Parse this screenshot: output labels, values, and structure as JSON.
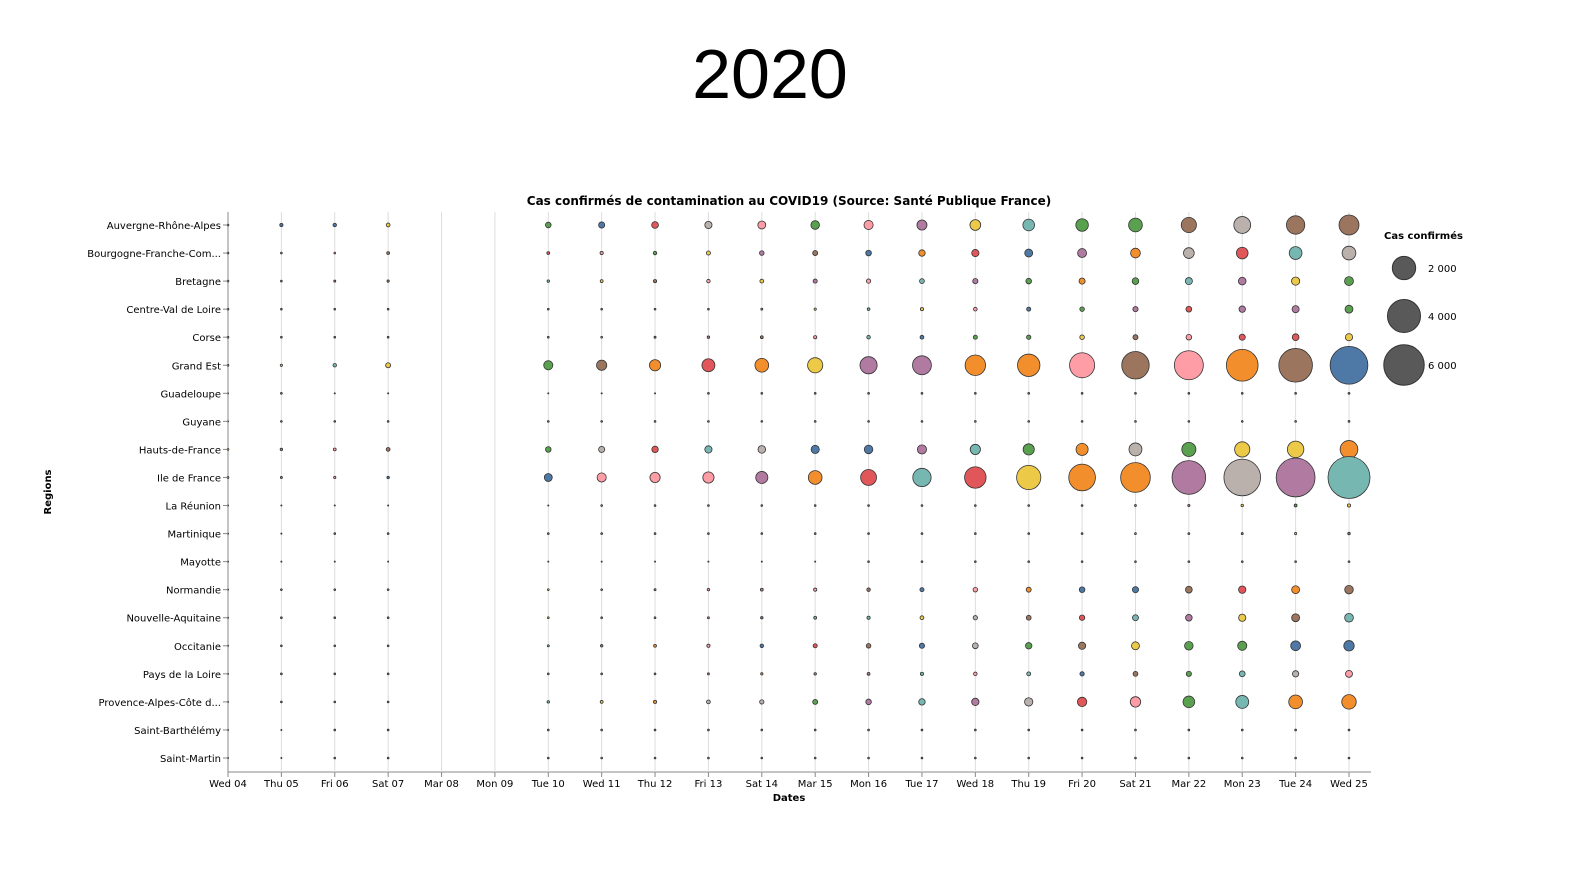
{
  "page_title": "2020",
  "chart_data": {
    "type": "scatter",
    "title": "Cas confirmés de contamination au COVID19 (Source: Santé Publique France)",
    "xlabel": "Dates",
    "ylabel": "Regions",
    "x_ticks": [
      "Wed 04",
      "Thu 05",
      "Fri 06",
      "Sat 07",
      "Mar 08",
      "Mon 09",
      "Tue 10",
      "Wed 11",
      "Thu 12",
      "Fri 13",
      "Sat 14",
      "Mar 15",
      "Mon 16",
      "Tue 17",
      "Wed 18",
      "Thu 19",
      "Fri 20",
      "Sat 21",
      "Mar 22",
      "Mon 23",
      "Tue 24",
      "Wed 25"
    ],
    "regions": [
      "Auvergne-Rhône-Alpes",
      "Bourgogne-Franche-Com...",
      "Bretagne",
      "Centre-Val de Loire",
      "Corse",
      "Grand Est",
      "Guadeloupe",
      "Guyane",
      "Hauts-de-France",
      "Ile de France",
      "La Réunion",
      "Martinique",
      "Mayotte",
      "Normandie",
      "Nouvelle-Aquitaine",
      "Occitanie",
      "Pays de la Loire",
      "Provence-Alpes-Côte d...",
      "Saint-Barthélémy",
      "Saint-Martin"
    ],
    "legend": {
      "title": "Cas confirmés",
      "position": "right",
      "entries": [
        2000,
        4000,
        6000
      ],
      "labels": [
        "2 000",
        "4 000",
        "6 000"
      ]
    },
    "grid": true,
    "palette": [
      "#4e79a7",
      "#f28e2b",
      "#e15759",
      "#76b7b2",
      "#59a14f",
      "#edc948",
      "#b07aa1",
      "#ff9da7",
      "#9c755f",
      "#bab0ac"
    ],
    "values": [
      [
        5,
        50,
        60,
        70,
        null,
        null,
        150,
        180,
        220,
        250,
        300,
        350,
        400,
        480,
        550,
        650,
        750,
        900,
        1100,
        1350,
        1600,
        1900
      ],
      [
        3,
        10,
        15,
        40,
        null,
        null,
        40,
        50,
        60,
        80,
        100,
        120,
        150,
        200,
        250,
        300,
        380,
        450,
        550,
        650,
        780,
        900
      ],
      [
        3,
        15,
        20,
        25,
        null,
        null,
        30,
        40,
        50,
        60,
        70,
        80,
        90,
        110,
        130,
        150,
        180,
        210,
        240,
        280,
        320,
        380
      ],
      [
        1,
        2,
        3,
        4,
        null,
        null,
        6,
        8,
        10,
        15,
        20,
        25,
        35,
        50,
        65,
        80,
        100,
        130,
        160,
        200,
        240,
        300
      ],
      [
        1,
        2,
        2,
        2,
        null,
        null,
        10,
        15,
        20,
        30,
        40,
        50,
        60,
        70,
        80,
        90,
        100,
        120,
        150,
        180,
        220,
        250
      ],
      [
        3,
        25,
        60,
        120,
        null,
        null,
        400,
        500,
        600,
        800,
        900,
        1100,
        1400,
        1700,
        2000,
        2400,
        3000,
        3600,
        4000,
        4800,
        5400,
        6800
      ],
      [
        0,
        1,
        0,
        0,
        null,
        null,
        0,
        0,
        0,
        1,
        1,
        2,
        3,
        4,
        5,
        6,
        7,
        8,
        10,
        12,
        14,
        18
      ],
      [
        0,
        2,
        2,
        1,
        null,
        null,
        2,
        3,
        4,
        4,
        5,
        5,
        6,
        6,
        7,
        7,
        8,
        9,
        10,
        12,
        14,
        16
      ],
      [
        5,
        30,
        40,
        70,
        null,
        null,
        150,
        180,
        200,
        250,
        280,
        320,
        350,
        400,
        500,
        600,
        700,
        800,
        950,
        1100,
        1300,
        1500
      ],
      [
        3,
        20,
        25,
        30,
        null,
        null,
        300,
        400,
        500,
        600,
        700,
        900,
        1200,
        1600,
        2200,
        2800,
        3400,
        4200,
        5400,
        6400,
        7200,
        8400
      ],
      [
        0,
        0,
        0,
        0,
        null,
        null,
        0,
        1,
        1,
        1,
        2,
        3,
        4,
        6,
        8,
        10,
        14,
        18,
        24,
        30,
        40,
        50
      ],
      [
        0,
        0,
        2,
        1,
        null,
        null,
        2,
        3,
        4,
        5,
        6,
        7,
        8,
        9,
        10,
        12,
        14,
        16,
        18,
        20,
        24,
        30
      ],
      [
        0,
        0,
        0,
        0,
        null,
        null,
        0,
        0,
        0,
        0,
        0,
        0,
        1,
        2,
        3,
        4,
        5,
        6,
        8,
        10,
        12,
        14
      ],
      [
        0,
        3,
        4,
        6,
        null,
        null,
        10,
        15,
        20,
        30,
        40,
        50,
        60,
        80,
        100,
        120,
        150,
        180,
        220,
        260,
        300,
        350
      ],
      [
        0,
        2,
        3,
        5,
        null,
        null,
        8,
        12,
        15,
        20,
        30,
        40,
        50,
        70,
        90,
        110,
        140,
        170,
        210,
        250,
        300,
        360
      ],
      [
        0,
        3,
        5,
        10,
        null,
        null,
        20,
        30,
        40,
        50,
        60,
        80,
        100,
        130,
        160,
        200,
        250,
        300,
        350,
        400,
        460,
        520
      ],
      [
        0,
        2,
        4,
        6,
        null,
        null,
        10,
        12,
        15,
        20,
        25,
        30,
        40,
        50,
        60,
        75,
        90,
        110,
        130,
        160,
        190,
        230
      ],
      [
        0,
        3,
        6,
        10,
        null,
        null,
        30,
        40,
        50,
        70,
        90,
        120,
        150,
        200,
        260,
        330,
        420,
        520,
        650,
        800,
        900,
        1000
      ],
      [
        0,
        0,
        1,
        1,
        null,
        null,
        1,
        1,
        1,
        1,
        2,
        2,
        2,
        3,
        3,
        3,
        4,
        4,
        5,
        5,
        6,
        6
      ],
      [
        0,
        0,
        2,
        1,
        null,
        null,
        2,
        2,
        3,
        3,
        3,
        4,
        4,
        5,
        5,
        6,
        6,
        7,
        8,
        9,
        10,
        11
      ]
    ],
    "colors": [
      [
        "teal",
        "blue",
        "blue",
        "yellow",
        null,
        null,
        "green",
        "blue",
        "red",
        "gray",
        "pink",
        "green",
        "pink",
        "purple",
        "yellow",
        "teal",
        "green",
        "green",
        "brown",
        "gray",
        "brown",
        "brown"
      ],
      [
        "brown",
        "purple",
        "pink",
        "brown",
        null,
        null,
        "red",
        "pink",
        "green",
        "yellow",
        "purple",
        "brown",
        "blue",
        "orange",
        "red",
        "blue",
        "purple",
        "orange",
        "gray",
        "red",
        "teal",
        "gray"
      ],
      [
        "teal",
        "brown",
        "brown",
        "brown",
        null,
        null,
        "teal",
        "yellow",
        "brown",
        "pink",
        "yellow",
        "purple",
        "pink",
        "teal",
        "purple",
        "green",
        "orange",
        "green",
        "teal",
        "purple",
        "yellow",
        "green"
      ],
      [
        "brown",
        "brown",
        "brown",
        "brown",
        null,
        null,
        "brown",
        "brown",
        "brown",
        "brown",
        "brown",
        "yellow",
        "teal",
        "yellow",
        "pink",
        "blue",
        "green",
        "purple",
        "red",
        "purple",
        "purple",
        "green"
      ],
      [
        "brown",
        "brown",
        "brown",
        "brown",
        null,
        null,
        "brown",
        "orange",
        "blue",
        "purple",
        "brown",
        "pink",
        "teal",
        "blue",
        "green",
        "green",
        "yellow",
        "brown",
        "pink",
        "red",
        "red",
        "yellow"
      ],
      [
        "blue",
        "yellow",
        "teal",
        "yellow",
        null,
        null,
        "green",
        "brown",
        "orange",
        "red",
        "orange",
        "yellow",
        "purple",
        "purple",
        "orange",
        "orange",
        "pink",
        "brown",
        "pink",
        "orange",
        "brown",
        "blue"
      ],
      [
        "brown",
        "brown",
        "brown",
        "brown",
        null,
        null,
        "brown",
        "brown",
        "brown",
        "brown",
        "brown",
        "brown",
        "brown",
        "brown",
        "brown",
        "brown",
        "brown",
        "brown",
        "brown",
        "brown",
        "brown",
        "brown"
      ],
      [
        "brown",
        "brown",
        "brown",
        "brown",
        null,
        null,
        "brown",
        "brown",
        "brown",
        "brown",
        "brown",
        "brown",
        "brown",
        "brown",
        "brown",
        "brown",
        "brown",
        "brown",
        "brown",
        "brown",
        "brown",
        "brown"
      ],
      [
        "orange",
        "purple",
        "pink",
        "brown",
        null,
        null,
        "green",
        "gray",
        "red",
        "teal",
        "gray",
        "blue",
        "blue",
        "purple",
        "teal",
        "green",
        "orange",
        "gray",
        "green",
        "yellow",
        "yellow",
        "orange"
      ],
      [
        "blue",
        "red",
        "pink",
        "blue",
        null,
        null,
        "blue",
        "pink",
        "pink",
        "pink",
        "purple",
        "orange",
        "red",
        "teal",
        "red",
        "yellow",
        "orange",
        "orange",
        "purple",
        "gray",
        "purple",
        "teal"
      ],
      [
        "brown",
        "brown",
        "brown",
        "brown",
        null,
        null,
        "brown",
        "brown",
        "brown",
        "brown",
        "brown",
        "brown",
        "brown",
        "brown",
        "brown",
        "brown",
        "blue",
        "red",
        "purple",
        "yellow",
        "green",
        "yellow"
      ],
      [
        "brown",
        "brown",
        "brown",
        "brown",
        null,
        null,
        "brown",
        "brown",
        "brown",
        "brown",
        "brown",
        "brown",
        "brown",
        "brown",
        "brown",
        "brown",
        "brown",
        "brown",
        "brown",
        "brown",
        "yellow",
        "brown"
      ],
      [
        "brown",
        "brown",
        "brown",
        "brown",
        null,
        null,
        "brown",
        "brown",
        "brown",
        "brown",
        "brown",
        "brown",
        "brown",
        "brown",
        "brown",
        "brown",
        "brown",
        "brown",
        "brown",
        "brown",
        "brown",
        "brown"
      ],
      [
        "brown",
        "brown",
        "brown",
        "brown",
        null,
        null,
        "yellow",
        "purple",
        "purple",
        "pink",
        "purple",
        "pink",
        "brown",
        "blue",
        "pink",
        "orange",
        "blue",
        "blue",
        "brown",
        "red",
        "orange",
        "brown"
      ],
      [
        "brown",
        "brown",
        "brown",
        "brown",
        null,
        null,
        "yellow",
        "red",
        "purple",
        "purple",
        "blue",
        "teal",
        "teal",
        "yellow",
        "gray",
        "brown",
        "red",
        "teal",
        "purple",
        "yellow",
        "brown",
        "teal"
      ],
      [
        "brown",
        "brown",
        "brown",
        "brown",
        null,
        null,
        "teal",
        "purple",
        "orange",
        "pink",
        "blue",
        "red",
        "brown",
        "blue",
        "gray",
        "green",
        "brown",
        "yellow",
        "green",
        "green",
        "blue",
        "blue"
      ],
      [
        "brown",
        "brown",
        "brown",
        "brown",
        null,
        null,
        "purple",
        "brown",
        "purple",
        "purple",
        "orange",
        "purple",
        "purple",
        "teal",
        "pink",
        "teal",
        "blue",
        "brown",
        "green",
        "teal",
        "gray",
        "pink"
      ],
      [
        "brown",
        "brown",
        "brown",
        "brown",
        null,
        null,
        "teal",
        "yellow",
        "orange",
        "gray",
        "gray",
        "green",
        "purple",
        "teal",
        "purple",
        "gray",
        "red",
        "pink",
        "green",
        "teal",
        "orange",
        "orange"
      ],
      [
        "brown",
        "brown",
        "brown",
        "brown",
        null,
        null,
        "brown",
        "brown",
        "brown",
        "brown",
        "brown",
        "brown",
        "brown",
        "brown",
        "brown",
        "brown",
        "brown",
        "brown",
        "brown",
        "brown",
        "brown",
        "brown"
      ],
      [
        "brown",
        "brown",
        "brown",
        "brown",
        null,
        null,
        "brown",
        "brown",
        "brown",
        "brown",
        "brown",
        "brown",
        "brown",
        "brown",
        "brown",
        "brown",
        "brown",
        "brown",
        "brown",
        "brown",
        "brown",
        "brown"
      ]
    ]
  }
}
